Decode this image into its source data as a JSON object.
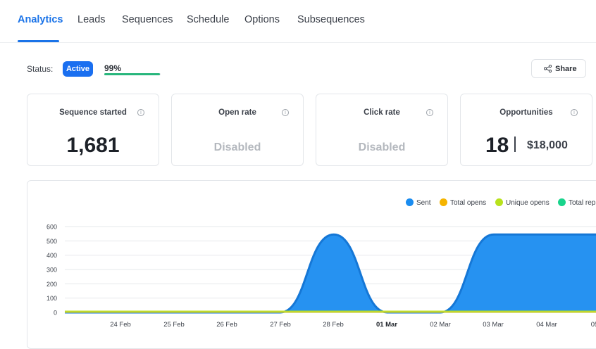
{
  "tabs": [
    {
      "label": "Analytics",
      "active": true
    },
    {
      "label": "Leads"
    },
    {
      "label": "Sequences"
    },
    {
      "label": "Schedule"
    },
    {
      "label": "Options"
    },
    {
      "label": "Subsequences"
    }
  ],
  "status": {
    "label": "Status:",
    "badge": "Active",
    "progress_text": "99%",
    "progress_value": 0.99
  },
  "share_label": "Share",
  "cards": {
    "sequence_started": {
      "title": "Sequence started",
      "value": "1,681"
    },
    "open_rate": {
      "title": "Open rate",
      "value": "Disabled"
    },
    "click_rate": {
      "title": "Click rate",
      "value": "Disabled"
    },
    "opportunities": {
      "title": "Opportunities",
      "count": "18",
      "amount": "$18,000"
    }
  },
  "icons": {
    "info": "info-icon",
    "share": "share-icon"
  },
  "colors": {
    "accent": "#1a73e8",
    "progress": "#27b67c",
    "sent": "#1a8cf0",
    "total_opens": "#f5b400",
    "unique_opens": "#b8e21c",
    "total_replies": "#19d48c"
  },
  "chart_data": {
    "type": "area",
    "legend": [
      {
        "name": "Sent",
        "color": "#1a8cf0"
      },
      {
        "name": "Total opens",
        "color": "#f5b400"
      },
      {
        "name": "Unique opens",
        "color": "#b8e21c"
      },
      {
        "name": "Total repli",
        "color": "#19d48c"
      }
    ],
    "y_ticks": [
      0,
      100,
      200,
      300,
      400,
      500,
      600
    ],
    "ylim": [
      0,
      600
    ],
    "x_labels": [
      "24 Feb",
      "25 Feb",
      "26 Feb",
      "27 Feb",
      "28 Feb",
      "01 Mar",
      "02 Mar",
      "03 Mar",
      "04 Mar",
      "05"
    ],
    "x_bold": "01 Mar",
    "grid": true,
    "sent": {
      "points": [
        {
          "date": "23 Feb",
          "value": 0
        },
        {
          "date": "27 Feb",
          "value": 0
        },
        {
          "date": "28 Feb",
          "value": 545
        },
        {
          "date": "01 Mar",
          "value": 0
        },
        {
          "date": "02 Mar",
          "value": 0
        },
        {
          "date": "03 Mar",
          "value": 545
        },
        {
          "date": "05 Mar",
          "value": 545
        }
      ]
    },
    "unique_opens": {
      "value": 5
    },
    "total_replies": {
      "value": 2
    }
  }
}
